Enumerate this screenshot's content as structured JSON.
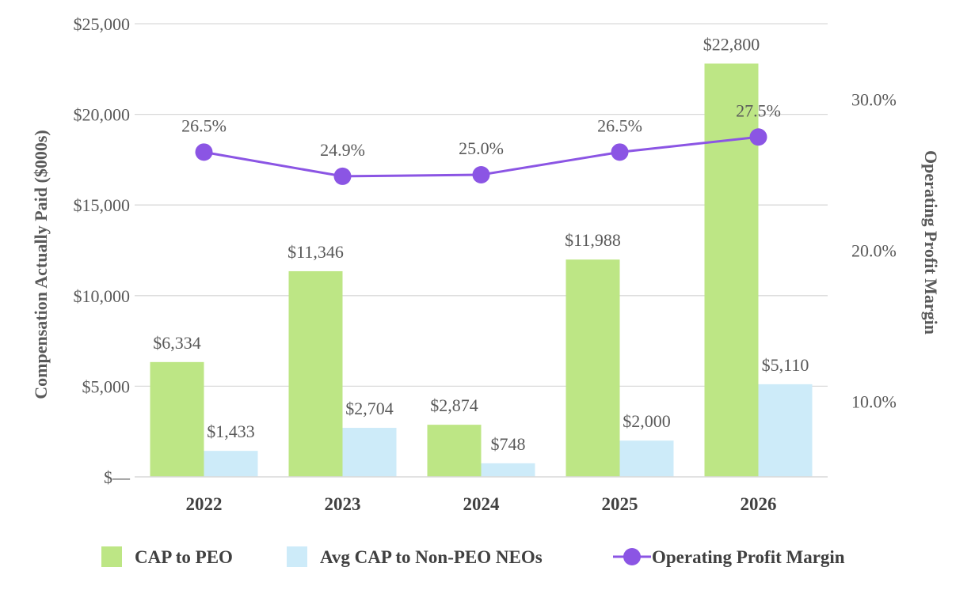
{
  "chart_data": {
    "type": "bar",
    "categories": [
      "2022",
      "2023",
      "2024",
      "2025",
      "2026"
    ],
    "series": [
      {
        "name": "CAP to PEO",
        "axis": "left",
        "type": "bar",
        "color": "#bde685",
        "values": [
          6334,
          11346,
          2874,
          11988,
          22800
        ],
        "labels": [
          "$6,334",
          "$11,346",
          "$2,874",
          "$11,988",
          "$22,800"
        ]
      },
      {
        "name": "Avg CAP to Non-PEO NEOs",
        "axis": "left",
        "type": "bar",
        "color": "#cdebf9",
        "values": [
          1433,
          2704,
          748,
          2000,
          5110
        ],
        "labels": [
          "$1,433",
          "$2,704",
          "$748",
          "$2,000",
          "$5,110"
        ]
      },
      {
        "name": "Operating Profit Margin",
        "axis": "right",
        "type": "line",
        "color": "#8b55e4",
        "values": [
          26.5,
          24.9,
          25.0,
          26.5,
          27.5
        ],
        "labels": [
          "26.5%",
          "24.9%",
          "25.0%",
          "26.5%",
          "27.5%"
        ]
      }
    ],
    "left_axis": {
      "title": "Compensation Actually Paid ($000s)",
      "ylim": [
        0,
        25000
      ],
      "ticks": [
        0,
        5000,
        10000,
        15000,
        20000,
        25000
      ],
      "tick_labels": [
        "$—",
        "$5,000",
        "$10,000",
        "$15,000",
        "$20,000",
        "$25,000"
      ]
    },
    "right_axis": {
      "title": "Operating Profit Margin",
      "ylim": [
        5,
        35
      ],
      "ticks": [
        10,
        20,
        30
      ],
      "tick_labels": [
        "10.0%",
        "20.0%",
        "30.0%"
      ]
    },
    "grid": true,
    "legend_position": "bottom"
  }
}
